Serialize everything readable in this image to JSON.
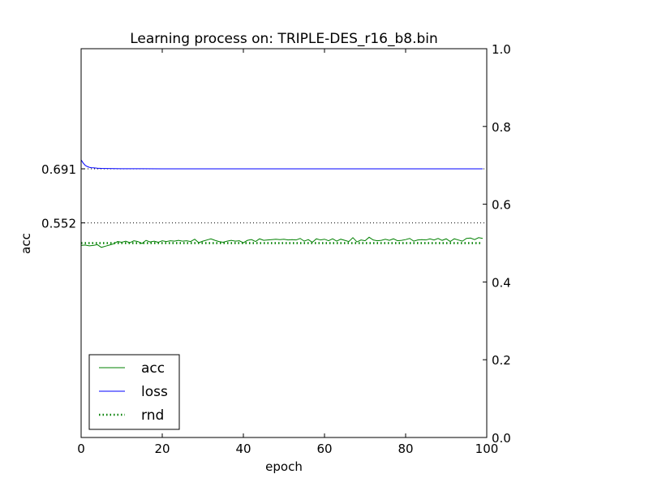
{
  "chart_data": {
    "type": "line",
    "title": "Learning process on: TRIPLE-DES_r16_b8.bin",
    "xlabel": "epoch",
    "ylabel": "acc",
    "xlim": [
      0,
      100
    ],
    "ylim": [
      0,
      1
    ],
    "x_ticks": [
      0,
      20,
      40,
      60,
      80,
      100
    ],
    "x_tick_labels": [
      "0",
      "20",
      "40",
      "60",
      "80",
      "100"
    ],
    "y_right_ticks": [
      0.0,
      0.2,
      0.4,
      0.6,
      0.8,
      1.0
    ],
    "y_right_tick_labels": [
      "0.0",
      "0.2",
      "0.4",
      "0.6",
      "0.8",
      "1.0"
    ],
    "y_left_ticks": [
      0.691,
      0.552
    ],
    "y_left_tick_labels": [
      "0.691",
      "0.552"
    ],
    "reference_lines": [
      0.691,
      0.552
    ],
    "grid": false,
    "legend_position": "bottom-left",
    "colors": {
      "acc": "#008000",
      "loss": "#0000ff",
      "rnd": "#008000",
      "reference": "#000000"
    },
    "series": [
      {
        "name": "acc",
        "style": "solid",
        "x": [
          0,
          1,
          2,
          3,
          4,
          5,
          6,
          7,
          8,
          9,
          10,
          11,
          12,
          13,
          14,
          15,
          16,
          17,
          18,
          19,
          20,
          21,
          22,
          23,
          24,
          25,
          26,
          27,
          28,
          29,
          30,
          31,
          32,
          33,
          34,
          35,
          36,
          37,
          38,
          39,
          40,
          41,
          42,
          43,
          44,
          45,
          46,
          47,
          48,
          49,
          50,
          51,
          52,
          53,
          54,
          55,
          56,
          57,
          58,
          59,
          60,
          61,
          62,
          63,
          64,
          65,
          66,
          67,
          68,
          69,
          70,
          71,
          72,
          73,
          74,
          75,
          76,
          77,
          78,
          79,
          80,
          81,
          82,
          83,
          84,
          85,
          86,
          87,
          88,
          89,
          90,
          91,
          92,
          93,
          94,
          95,
          96,
          97,
          98,
          99
        ],
        "values": [
          0.494,
          0.495,
          0.493,
          0.494,
          0.496,
          0.489,
          0.492,
          0.495,
          0.498,
          0.504,
          0.502,
          0.505,
          0.501,
          0.506,
          0.504,
          0.499,
          0.507,
          0.503,
          0.505,
          0.502,
          0.506,
          0.504,
          0.506,
          0.505,
          0.507,
          0.505,
          0.506,
          0.504,
          0.51,
          0.501,
          0.505,
          0.508,
          0.511,
          0.507,
          0.504,
          0.502,
          0.505,
          0.507,
          0.505,
          0.506,
          0.501,
          0.507,
          0.509,
          0.504,
          0.511,
          0.507,
          0.508,
          0.509,
          0.51,
          0.509,
          0.51,
          0.508,
          0.509,
          0.508,
          0.512,
          0.505,
          0.509,
          0.502,
          0.511,
          0.508,
          0.51,
          0.506,
          0.511,
          0.505,
          0.51,
          0.507,
          0.504,
          0.514,
          0.503,
          0.508,
          0.506,
          0.515,
          0.508,
          0.506,
          0.507,
          0.51,
          0.507,
          0.511,
          0.506,
          0.507,
          0.509,
          0.512,
          0.505,
          0.508,
          0.509,
          0.508,
          0.511,
          0.508,
          0.512,
          0.507,
          0.511,
          0.504,
          0.511,
          0.508,
          0.505,
          0.512,
          0.513,
          0.509,
          0.514,
          0.512
        ]
      },
      {
        "name": "loss",
        "style": "solid",
        "x": [
          0,
          0.5,
          1,
          1.5,
          2,
          2.5,
          3,
          3.5,
          4,
          5,
          6,
          8,
          10,
          15,
          20,
          30,
          40,
          50,
          60,
          70,
          80,
          90,
          99
        ],
        "values": [
          0.714,
          0.706,
          0.7,
          0.697,
          0.695,
          0.694,
          0.6935,
          0.693,
          0.6925,
          0.692,
          0.6918,
          0.6915,
          0.6913,
          0.6912,
          0.6911,
          0.691,
          0.691,
          0.691,
          0.691,
          0.691,
          0.691,
          0.691,
          0.691
        ]
      },
      {
        "name": "rnd",
        "style": "dotted",
        "x": [
          0,
          99
        ],
        "values": [
          0.5,
          0.5
        ]
      }
    ]
  }
}
